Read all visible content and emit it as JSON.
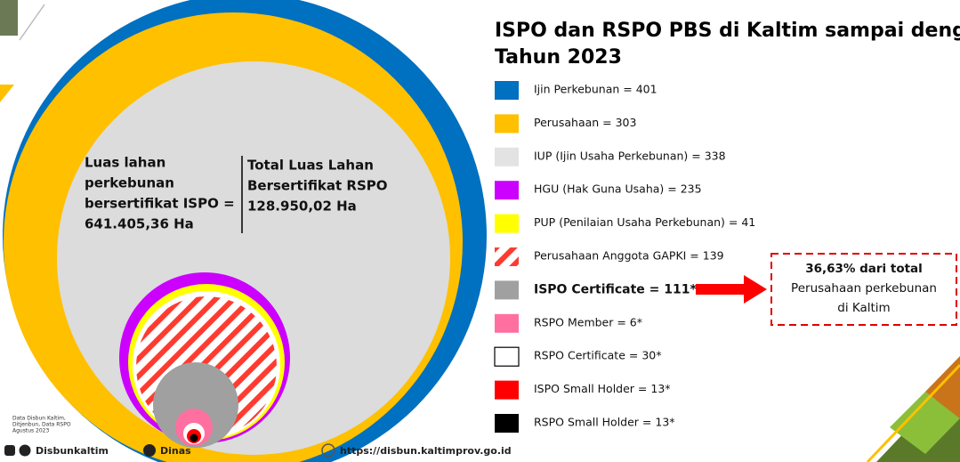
{
  "title_lines": [
    "ISPO dan RSPO PBS di Kaltim sampai dengan",
    "Tahun 2023"
  ],
  "legend": [
    {
      "label": "Ijin Perkebunan = 401",
      "color": "#0070c0"
    },
    {
      "label": "Perusahaan = 303",
      "color": "#ffc000"
    },
    {
      "label": "IUP (Ijin Usaha Perkebunan) = 338",
      "color": "#e3e3e3"
    },
    {
      "label": "HGU (Hak Guna Usaha) = 235",
      "color": "#cc00ff"
    },
    {
      "label": "PUP (Penilaian Usaha Perkebunan) = 41",
      "color": "#ffff00"
    },
    {
      "label": "Perusahaan Anggota GAPKI = 139",
      "color": "hatch"
    },
    {
      "label": "ISPO Certificate = 111*",
      "color": "#a0a0a0",
      "bold": true
    },
    {
      "label": "RSPO Member = 6*",
      "color": "#ff6fa0"
    },
    {
      "label": "RSPO Certificate = 30*",
      "color": "#ffffff"
    },
    {
      "label": "ISPO Small Holder = 13*",
      "color": "#ff0000"
    },
    {
      "label": "RSPO Small Holder = 13*",
      "color": "#000000"
    }
  ],
  "circle_text": {
    "ispo": [
      "Luas lahan",
      "perkebunan",
      "bersertifikat ISPO =",
      "641.405,36 Ha"
    ],
    "rspo": [
      "Total  Luas  Lahan",
      "Bersertifikat  RSPO",
      "128.950,02 Ha"
    ]
  },
  "annotation": [
    "36,63% dari total",
    "Perusahaan perkebunan",
    "di Kaltim"
  ],
  "footer": {
    "note": [
      "Data Disbun Kaltim,",
      "Ditjenbun, Data RSPO",
      "Agustus 2023"
    ],
    "social1": "Disbunkaltim",
    "social2": "Dinas",
    "url": "https://disbun.kaltimprov.go.id"
  }
}
